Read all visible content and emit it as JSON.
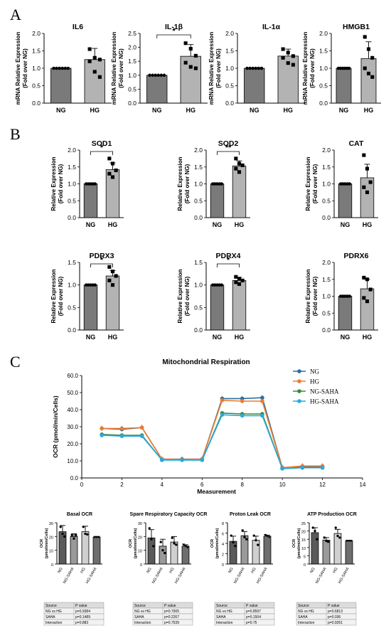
{
  "panels": {
    "A": "A",
    "B": "B",
    "C": "C"
  },
  "group_labels": [
    "NG",
    "HG"
  ],
  "chart_data": [
    {
      "id": "IL6",
      "type": "bar",
      "title": "IL6",
      "panel": "A",
      "categories": [
        "NG",
        "HG"
      ],
      "values": [
        1.0,
        1.25
      ],
      "errors": [
        0,
        0.32
      ],
      "points": [
        [
          1,
          1,
          1,
          1,
          1,
          1
        ],
        [
          1.55,
          1.3,
          1.25,
          1.2,
          0.9,
          0.75
        ]
      ],
      "ylabel": "mRNA Relative Expression\n(Fold over NG)",
      "ylim": [
        0,
        2.0
      ],
      "ticks": [
        0.0,
        0.5,
        1.0,
        1.5,
        2.0
      ],
      "sig": ""
    },
    {
      "id": "IL1b",
      "type": "bar",
      "title": "IL-1β",
      "panel": "A",
      "categories": [
        "NG",
        "HG"
      ],
      "values": [
        1.0,
        1.68
      ],
      "errors": [
        0,
        0.42
      ],
      "points": [
        [
          1,
          1,
          1,
          1,
          1,
          1
        ],
        [
          2.15,
          1.95,
          1.7,
          1.45,
          1.3,
          1.25
        ]
      ],
      "ylabel": "mRNA Relative Expression\n(Fold over NG)",
      "ylim": [
        0,
        2.5
      ],
      "ticks": [
        0.0,
        0.5,
        1.0,
        1.5,
        2.0,
        2.5
      ],
      "sig": "*"
    },
    {
      "id": "IL1a",
      "type": "bar",
      "title": "IL-1α",
      "panel": "A",
      "categories": [
        "NG",
        "HG"
      ],
      "values": [
        1.0,
        1.35
      ],
      "errors": [
        0,
        0.2
      ],
      "points": [
        [
          1,
          1,
          1,
          1,
          1,
          1
        ],
        [
          1.55,
          1.45,
          1.35,
          1.3,
          1.15,
          1.1
        ]
      ],
      "ylabel": "mRNA Relative Expression\n(Fold over NG)",
      "ylim": [
        0,
        2.0
      ],
      "ticks": [
        0.0,
        0.5,
        1.0,
        1.5,
        2.0
      ],
      "sig": ""
    },
    {
      "id": "HMGB1",
      "type": "bar",
      "title": "HMGB1",
      "panel": "A",
      "categories": [
        "NG",
        "HG"
      ],
      "values": [
        1.0,
        1.28
      ],
      "errors": [
        0,
        0.48
      ],
      "points": [
        [
          1,
          1,
          1,
          1,
          1,
          1
        ],
        [
          1.9,
          1.55,
          1.3,
          1.0,
          0.85,
          0.75
        ]
      ],
      "ylabel": "mRNA Relative Expression\n(Fold over NG)",
      "ylim": [
        0,
        2.0
      ],
      "ticks": [
        0.0,
        0.5,
        1.0,
        1.5,
        2.0
      ],
      "sig": ""
    },
    {
      "id": "SOD1",
      "type": "bar",
      "title": "SOD1",
      "panel": "B",
      "categories": [
        "NG",
        "HG"
      ],
      "values": [
        1.0,
        1.42
      ],
      "errors": [
        0,
        0.2
      ],
      "points": [
        [
          1,
          1,
          1,
          1,
          1
        ],
        [
          1.75,
          1.6,
          1.4,
          1.3,
          1.2
        ]
      ],
      "ylabel": "Relative Expression\n(Fold over NG)",
      "ylim": [
        0,
        2.0
      ],
      "ticks": [
        0.0,
        0.5,
        1.0,
        1.5,
        2.0
      ],
      "sig": "*"
    },
    {
      "id": "SOD2",
      "type": "bar",
      "title": "SOD2",
      "panel": "B",
      "categories": [
        "NG",
        "HG"
      ],
      "values": [
        1.0,
        1.53
      ],
      "errors": [
        0,
        0.15
      ],
      "points": [
        [
          1,
          1,
          1,
          1,
          1
        ],
        [
          1.75,
          1.6,
          1.55,
          1.45,
          1.35
        ]
      ],
      "ylabel": "Relative Expression\n(Fold over NG)",
      "ylim": [
        0,
        2.0
      ],
      "ticks": [
        0.0,
        0.5,
        1.0,
        1.5,
        2.0
      ],
      "sig": "**"
    },
    {
      "id": "CAT",
      "type": "bar",
      "title": "CAT",
      "panel": "B",
      "categories": [
        "NG",
        "HG"
      ],
      "values": [
        1.0,
        1.18
      ],
      "errors": [
        0,
        0.4
      ],
      "points": [
        [
          1,
          1,
          1,
          1,
          1
        ],
        [
          1.85,
          1.45,
          1.05,
          0.9,
          0.75
        ]
      ],
      "ylabel": "Relative Expression\n(Fold over NG)",
      "ylim": [
        0,
        2.0
      ],
      "ticks": [
        0.0,
        0.5,
        1.0,
        1.5,
        2.0
      ],
      "sig": ""
    },
    {
      "id": "PDRX3",
      "type": "bar",
      "title": "PDRX3",
      "panel": "B",
      "categories": [
        "NG",
        "HG"
      ],
      "values": [
        1.0,
        1.2
      ],
      "errors": [
        0,
        0.12
      ],
      "points": [
        [
          1,
          1,
          1,
          1,
          1
        ],
        [
          1.4,
          1.3,
          1.2,
          1.1,
          1.0
        ]
      ],
      "ylabel": "Relative Expression\n(Fold over NG)",
      "ylim": [
        0,
        1.5
      ],
      "ticks": [
        0.0,
        0.5,
        1.0,
        1.5
      ],
      "sig": "*"
    },
    {
      "id": "PDRX4",
      "type": "bar",
      "title": "PDRX4",
      "panel": "B",
      "categories": [
        "NG",
        "HG"
      ],
      "values": [
        1.0,
        1.1
      ],
      "errors": [
        0,
        0.07
      ],
      "points": [
        [
          1,
          1,
          1,
          1,
          1
        ],
        [
          1.18,
          1.14,
          1.1,
          1.06,
          1.02
        ]
      ],
      "ylabel": "Relative Expression\n(Fold over NG)",
      "ylim": [
        0,
        1.5
      ],
      "ticks": [
        0.0,
        0.5,
        1.0,
        1.5
      ],
      "sig": "*"
    },
    {
      "id": "PDRX6",
      "type": "bar",
      "title": "PDRX6",
      "panel": "B",
      "categories": [
        "NG",
        "HG"
      ],
      "values": [
        1.0,
        1.22
      ],
      "errors": [
        0,
        0.28
      ],
      "points": [
        [
          1,
          1,
          1,
          1,
          1
        ],
        [
          1.55,
          1.5,
          1.2,
          0.95,
          0.85
        ]
      ],
      "ylabel": "Relative Expression\n(Fold over NG)",
      "ylim": [
        0,
        2.0
      ],
      "ticks": [
        0.0,
        0.5,
        1.0,
        1.5,
        2.0
      ],
      "sig": ""
    },
    {
      "id": "MitoResp",
      "type": "line",
      "title": "Mitochondrial Respiration",
      "panel": "C",
      "xlabel": "Measurement",
      "ylabel": "OCR (pmol/min/Cells)",
      "xlim": [
        0,
        14
      ],
      "ylim": [
        0,
        60
      ],
      "xticks": [
        0,
        2,
        4,
        6,
        8,
        10,
        12,
        14
      ],
      "yticks": [
        0.0,
        10.0,
        20.0,
        30.0,
        40.0,
        50.0,
        60.0
      ],
      "x": [
        1,
        2,
        3,
        4,
        5,
        6,
        7,
        8,
        9,
        10,
        11,
        12
      ],
      "series": [
        {
          "name": "NG",
          "color": "#2a6fa0",
          "values": [
            29,
            28.5,
            29.5,
            11,
            11,
            11,
            46.5,
            46.5,
            47,
            6,
            6.5,
            6.5
          ]
        },
        {
          "name": "HG",
          "color": "#f07a30",
          "values": [
            29,
            29,
            29.5,
            11,
            10.8,
            11,
            45.5,
            45,
            45,
            6,
            7,
            7
          ]
        },
        {
          "name": "NG-SAHA",
          "color": "#3a8a3a",
          "values": [
            25.5,
            25,
            25,
            10.5,
            10.5,
            10.5,
            38,
            37.5,
            37.5,
            5.5,
            6,
            6
          ]
        },
        {
          "name": "HG-SAHA",
          "color": "#2aa8e0",
          "values": [
            25,
            24.5,
            24.5,
            10.5,
            10.5,
            10.5,
            37,
            36.5,
            36.5,
            5.5,
            6,
            6
          ]
        }
      ],
      "legend": "top-right"
    },
    {
      "id": "Basal",
      "type": "bar",
      "title": "Basal OCR",
      "panel": "C",
      "categories": [
        "NG",
        "NG-SAHA",
        "HG",
        "HG-SAHA"
      ],
      "values": [
        23.5,
        20,
        23.5,
        19.5
      ],
      "errors": [
        4.5,
        2,
        4,
        0
      ],
      "points": [
        [
          27,
          22,
          20
        ],
        [
          21,
          18.5,
          21
        ],
        [
          27,
          22,
          21.5
        ],
        [
          19.5,
          19.5,
          19.5
        ]
      ],
      "ylabel": "OCR\n(pmol/min/Cells)",
      "ylim": [
        0,
        30
      ],
      "ticks": [
        0,
        10,
        20,
        30
      ],
      "table": {
        "header": [
          "Source",
          "P value"
        ],
        "rows": [
          [
            "NG vs HG",
            "p=0.9384"
          ],
          [
            "SAHA",
            "p=0.1489"
          ],
          [
            "Interaction",
            "p=0.883"
          ]
        ]
      }
    },
    {
      "id": "SRC",
      "type": "bar",
      "title": "Spare Respiratory Capacity OCR",
      "panel": "C",
      "categories": [
        "NG",
        "NG-SAHA",
        "HG",
        "HG-SAHA"
      ],
      "values": [
        19,
        13,
        16,
        13
      ],
      "errors": [
        6,
        5,
        4,
        1
      ],
      "points": [
        [
          26,
          18,
          13
        ],
        [
          16,
          10,
          8
        ],
        [
          19,
          15,
          14
        ],
        [
          14,
          13,
          12
        ]
      ],
      "ylabel": "OCR\n(pmol/min/Cells)",
      "ylim": [
        0,
        30
      ],
      "ticks": [
        0,
        10,
        20,
        30
      ],
      "table": {
        "header": [
          "Source",
          "P value"
        ],
        "rows": [
          [
            "NG vs HG",
            "p=0.7005"
          ],
          [
            "SAHA",
            "p=0.2267"
          ],
          [
            "Interaction",
            "p=0.7539"
          ]
        ]
      }
    },
    {
      "id": "Proton",
      "type": "bar",
      "title": "Proton Leak OCR",
      "panel": "C",
      "categories": [
        "NG",
        "NG-SAHA",
        "HG",
        "HG-SAHA"
      ],
      "values": [
        4.4,
        5.5,
        4.6,
        5.4
      ],
      "errors": [
        1,
        0.8,
        0.8,
        0.2
      ],
      "points": [
        [
          5.5,
          4.2,
          3.5
        ],
        [
          6.5,
          5.2,
          4.8
        ],
        [
          5.5,
          4.6,
          3.7
        ],
        [
          5.6,
          5.4,
          5.2
        ]
      ],
      "ylabel": "OCR\n(pmol/min/Cells)",
      "ylim": [
        0,
        8
      ],
      "ticks": [
        0,
        2,
        4,
        6,
        8
      ],
      "table": {
        "header": [
          "Source",
          "P value"
        ],
        "rows": [
          [
            "NG vs HG",
            "p=0.8597"
          ],
          [
            "SAHA",
            "p=0.1504"
          ],
          [
            "Interaction",
            "p=0.75"
          ]
        ]
      }
    },
    {
      "id": "ATP",
      "type": "bar",
      "title": "ATP Production OCR",
      "panel": "C",
      "categories": [
        "NG",
        "NG-SAHA",
        "HG",
        "HG-SAHA"
      ],
      "values": [
        19,
        14.5,
        18.5,
        14
      ],
      "errors": [
        3,
        1.5,
        2.5,
        0
      ],
      "points": [
        [
          22,
          20,
          15
        ],
        [
          16,
          14,
          13.5
        ],
        [
          22,
          17,
          16
        ],
        [
          14,
          14,
          14
        ]
      ],
      "ylabel": "OCR\n(pmol/min/Cells)",
      "ylim": [
        0,
        25
      ],
      "ticks": [
        0,
        5,
        10,
        15,
        20,
        25
      ],
      "table": {
        "header": [
          "Source",
          "P value"
        ],
        "rows": [
          [
            "NG vs HG",
            "p=0.6813"
          ],
          [
            "SAHA",
            "p=0.036"
          ],
          [
            "Interaction",
            "p=0.9261"
          ]
        ]
      }
    }
  ]
}
